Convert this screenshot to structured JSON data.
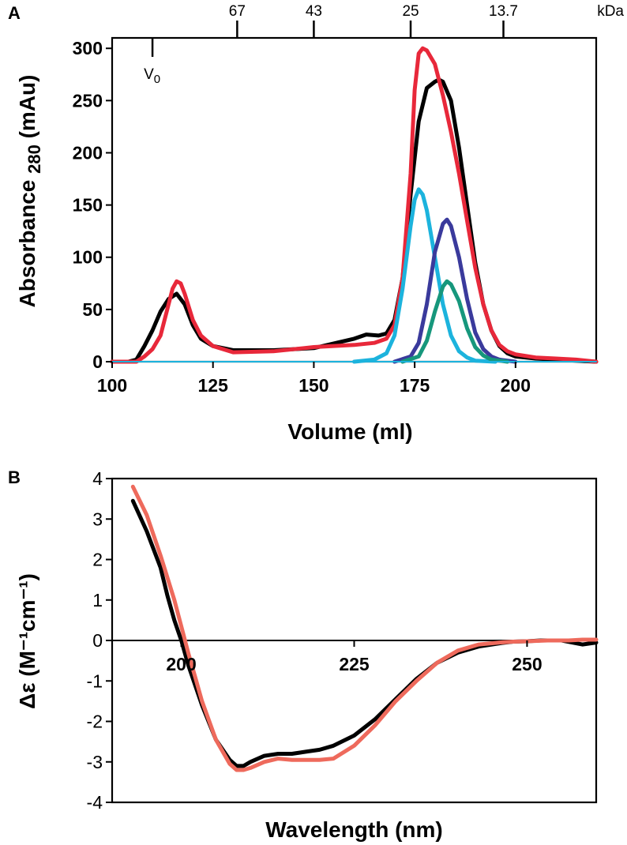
{
  "chart_data": [
    {
      "panel": "A",
      "type": "line",
      "xlabel": "Volume (ml)",
      "ylabel_main": "Absorbance",
      "ylabel_sub": "280",
      "ylabel_unit": "(mAu)",
      "xlim": [
        100,
        220
      ],
      "ylim": [
        0,
        310
      ],
      "xticks": [
        100,
        125,
        150,
        175,
        200
      ],
      "yticks": [
        0,
        50,
        100,
        150,
        200,
        250,
        300
      ],
      "top_axis_label": "kDa",
      "top_markers": [
        {
          "label": "67",
          "x": 131
        },
        {
          "label": "43",
          "x": 150
        },
        {
          "label": "25",
          "x": 174
        },
        {
          "label": "13.7",
          "x": 197
        }
      ],
      "v0": {
        "label": "V",
        "sub": "0",
        "x": 110
      },
      "series": [
        {
          "name": "black",
          "color": "#000000",
          "x": [
            100,
            104,
            106,
            108,
            110,
            112,
            114,
            116,
            118,
            120,
            122,
            125,
            130,
            140,
            150,
            160,
            163,
            166,
            168,
            170,
            172,
            174,
            176,
            178,
            180,
            181,
            182,
            184,
            186,
            188,
            190,
            192,
            194,
            196,
            198,
            200,
            205,
            210,
            215,
            220
          ],
          "y": [
            0,
            0,
            2,
            15,
            30,
            48,
            60,
            65,
            55,
            35,
            22,
            15,
            11,
            11,
            13,
            22,
            26,
            25,
            27,
            40,
            80,
            160,
            230,
            262,
            268,
            270,
            268,
            250,
            205,
            150,
            95,
            55,
            30,
            15,
            8,
            5,
            3,
            2,
            1,
            0
          ]
        },
        {
          "name": "red",
          "color": "#e8283a",
          "x": [
            100,
            106,
            108,
            110,
            112,
            114,
            115,
            116,
            117,
            118,
            120,
            122,
            125,
            130,
            140,
            150,
            160,
            165,
            168,
            170,
            172,
            174,
            175,
            176,
            177,
            178,
            180,
            182,
            184,
            186,
            188,
            190,
            192,
            194,
            196,
            198,
            200,
            205,
            210,
            215,
            220
          ],
          "y": [
            0,
            0,
            5,
            12,
            25,
            55,
            70,
            77,
            75,
            65,
            40,
            25,
            15,
            9,
            10,
            14,
            16,
            18,
            22,
            35,
            80,
            180,
            260,
            295,
            300,
            298,
            285,
            255,
            220,
            180,
            135,
            90,
            55,
            30,
            16,
            10,
            7,
            4,
            3,
            2,
            0
          ]
        },
        {
          "name": "cyan",
          "color": "#1cb3dd",
          "x": [
            160,
            165,
            168,
            170,
            172,
            174,
            175,
            176,
            177,
            178,
            180,
            182,
            184,
            186,
            188,
            190,
            195
          ],
          "y": [
            0,
            2,
            8,
            25,
            70,
            130,
            155,
            165,
            160,
            145,
            100,
            55,
            25,
            10,
            4,
            1,
            0
          ]
        },
        {
          "name": "navy",
          "color": "#3a3a9c",
          "x": [
            170,
            174,
            176,
            178,
            180,
            182,
            183,
            184,
            186,
            188,
            190,
            192,
            194,
            196,
            200
          ],
          "y": [
            0,
            5,
            18,
            55,
            105,
            132,
            136,
            130,
            100,
            60,
            28,
            12,
            5,
            2,
            0
          ]
        },
        {
          "name": "green",
          "color": "#16977c",
          "x": [
            172,
            176,
            178,
            180,
            182,
            183,
            184,
            186,
            188,
            190,
            192,
            194,
            198
          ],
          "y": [
            0,
            5,
            20,
            48,
            72,
            77,
            74,
            58,
            32,
            14,
            6,
            2,
            0
          ]
        },
        {
          "name": "blue-baseline",
          "color": "#1cb3dd",
          "x": [
            100,
            220
          ],
          "y": [
            0,
            0
          ]
        }
      ]
    },
    {
      "panel": "B",
      "type": "line",
      "xlabel": "Wavelength (nm)",
      "ylabel": "Δε (M⁻¹cm⁻¹)",
      "xlim": [
        190,
        260
      ],
      "ylim": [
        -4,
        4
      ],
      "xticks": [
        200,
        225,
        250
      ],
      "yticks": [
        4,
        3,
        2,
        1,
        0,
        -1,
        -2,
        -3,
        -4
      ],
      "series": [
        {
          "name": "black",
          "color": "#000000",
          "x": [
            193,
            195,
            197,
            198,
            199,
            200,
            201,
            203,
            205,
            207,
            208,
            209,
            210,
            212,
            214,
            216,
            218,
            220,
            222,
            225,
            228,
            231,
            234,
            237,
            240,
            243,
            246,
            248,
            250,
            252,
            255,
            258,
            260
          ],
          "y": [
            3.45,
            2.7,
            1.8,
            1.1,
            0.5,
            0,
            -0.6,
            -1.6,
            -2.45,
            -2.95,
            -3.1,
            -3.1,
            -3.0,
            -2.85,
            -2.8,
            -2.8,
            -2.75,
            -2.7,
            -2.6,
            -2.35,
            -1.95,
            -1.45,
            -0.95,
            -0.55,
            -0.3,
            -0.15,
            -0.07,
            -0.03,
            -0.02,
            0,
            0,
            -0.1,
            -0.05
          ]
        },
        {
          "name": "salmon",
          "color": "#ee6a5c",
          "x": [
            193,
            195,
            197,
            199,
            200,
            201,
            202,
            203,
            205,
            207,
            208,
            209,
            210,
            212,
            214,
            216,
            218,
            220,
            222,
            225,
            228,
            231,
            234,
            237,
            240,
            243,
            246,
            248,
            250,
            253,
            256,
            258,
            260
          ],
          "y": [
            3.8,
            3.1,
            2.1,
            1.0,
            0.35,
            -0.3,
            -0.9,
            -1.5,
            -2.45,
            -3.05,
            -3.2,
            -3.2,
            -3.15,
            -3.0,
            -2.92,
            -2.95,
            -2.95,
            -2.95,
            -2.92,
            -2.6,
            -2.1,
            -1.5,
            -1.0,
            -0.55,
            -0.25,
            -0.1,
            -0.05,
            -0.03,
            -0.02,
            0,
            0,
            0.02,
            0.02
          ]
        }
      ]
    }
  ]
}
